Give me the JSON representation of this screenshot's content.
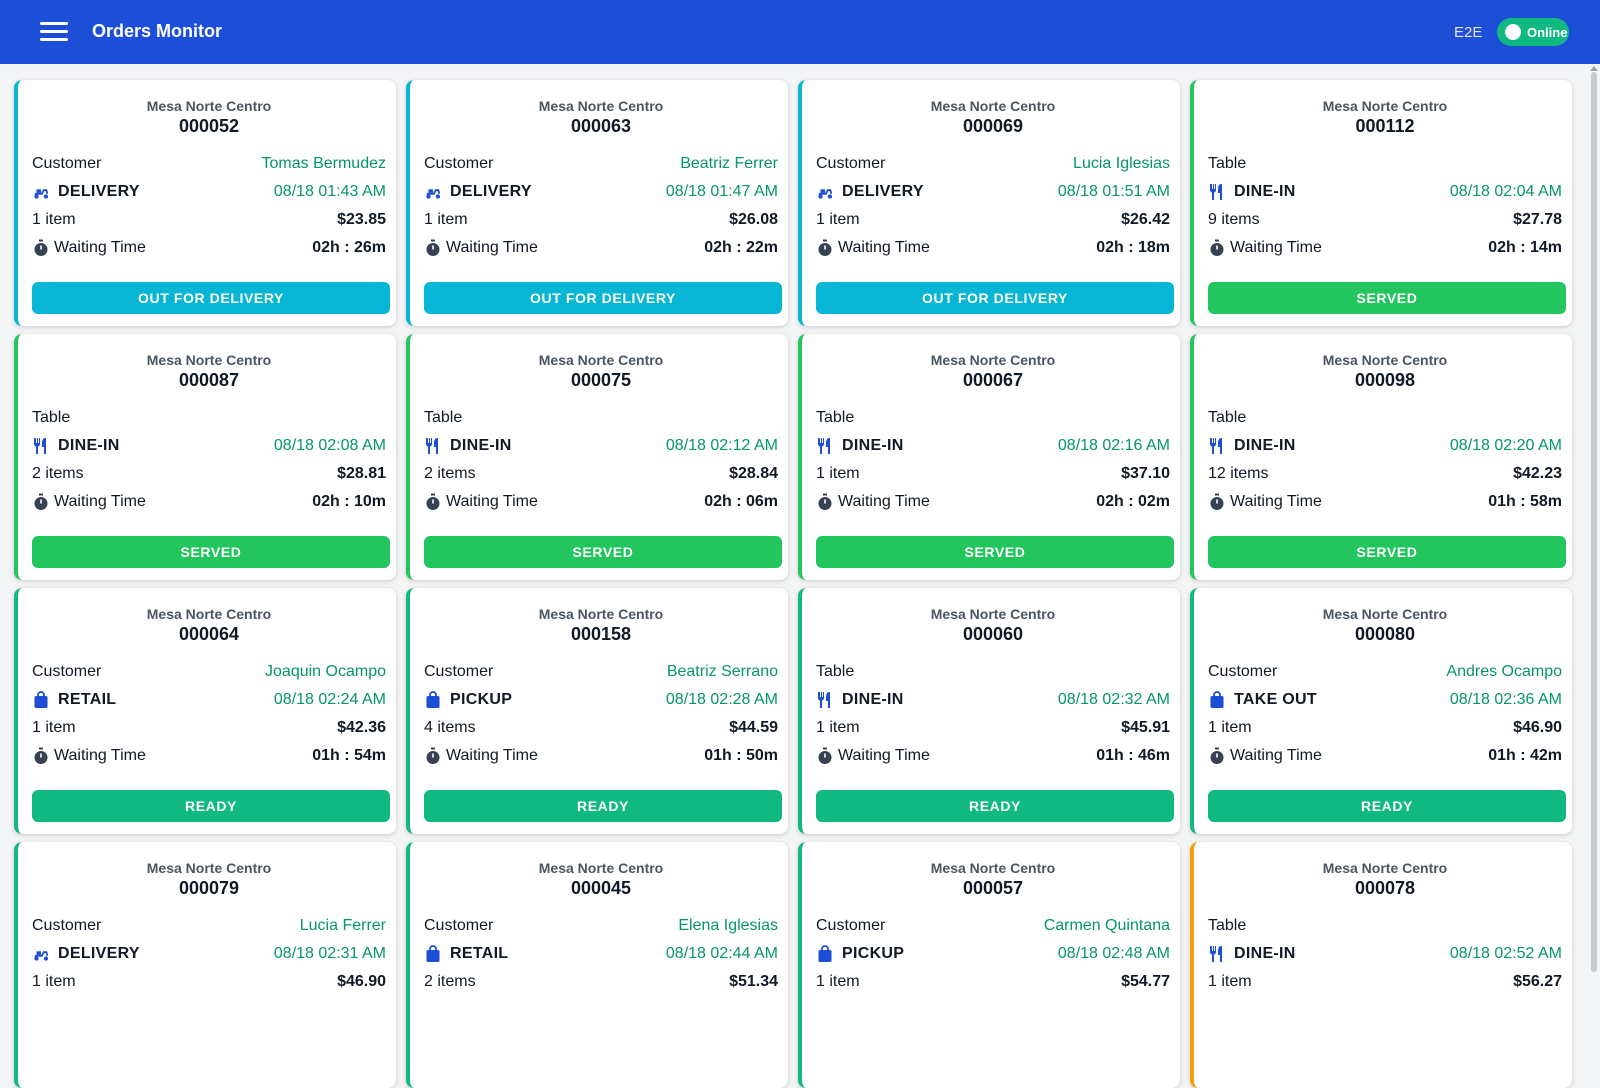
{
  "header": {
    "title": "Orders Monitor",
    "env": "E2E",
    "status": "Online"
  },
  "colors": {
    "header": "#1d4ed8",
    "delivery": "#06b6d4",
    "served": "#22c55e",
    "ready": "#10b981",
    "pending": "#f59e0b"
  },
  "orders": [
    {
      "branch": "Mesa Norte Centro",
      "number": "000052",
      "label": "Customer",
      "name": "Tomas Bermudez",
      "type": "DELIVERY",
      "icon": "scooter-icon",
      "datetime": "08/18 01:43 AM",
      "items": "1 item",
      "total": "$23.85",
      "wait_label": "Waiting Time",
      "wait": "02h : 26m",
      "status": "OUT FOR DELIVERY",
      "accent": "#06b6d4",
      "btn": "#06b6d4"
    },
    {
      "branch": "Mesa Norte Centro",
      "number": "000063",
      "label": "Customer",
      "name": "Beatriz Ferrer",
      "type": "DELIVERY",
      "icon": "scooter-icon",
      "datetime": "08/18 01:47 AM",
      "items": "1 item",
      "total": "$26.08",
      "wait_label": "Waiting Time",
      "wait": "02h : 22m",
      "status": "OUT FOR DELIVERY",
      "accent": "#06b6d4",
      "btn": "#06b6d4"
    },
    {
      "branch": "Mesa Norte Centro",
      "number": "000069",
      "label": "Customer",
      "name": "Lucia Iglesias",
      "type": "DELIVERY",
      "icon": "scooter-icon",
      "datetime": "08/18 01:51 AM",
      "items": "1 item",
      "total": "$26.42",
      "wait_label": "Waiting Time",
      "wait": "02h : 18m",
      "status": "OUT FOR DELIVERY",
      "accent": "#06b6d4",
      "btn": "#06b6d4"
    },
    {
      "branch": "Mesa Norte Centro",
      "number": "000112",
      "label": "Table",
      "name": "",
      "type": "DINE-IN",
      "icon": "utensils-icon",
      "datetime": "08/18 02:04 AM",
      "items": "9 items",
      "total": "$27.78",
      "wait_label": "Waiting Time",
      "wait": "02h : 14m",
      "status": "SERVED",
      "accent": "#22c55e",
      "btn": "#22c55e"
    },
    {
      "branch": "Mesa Norte Centro",
      "number": "000087",
      "label": "Table",
      "name": "",
      "type": "DINE-IN",
      "icon": "utensils-icon",
      "datetime": "08/18 02:08 AM",
      "items": "2 items",
      "total": "$28.81",
      "wait_label": "Waiting Time",
      "wait": "02h : 10m",
      "status": "SERVED",
      "accent": "#22c55e",
      "btn": "#22c55e"
    },
    {
      "branch": "Mesa Norte Centro",
      "number": "000075",
      "label": "Table",
      "name": "",
      "type": "DINE-IN",
      "icon": "utensils-icon",
      "datetime": "08/18 02:12 AM",
      "items": "2 items",
      "total": "$28.84",
      "wait_label": "Waiting Time",
      "wait": "02h : 06m",
      "status": "SERVED",
      "accent": "#22c55e",
      "btn": "#22c55e"
    },
    {
      "branch": "Mesa Norte Centro",
      "number": "000067",
      "label": "Table",
      "name": "",
      "type": "DINE-IN",
      "icon": "utensils-icon",
      "datetime": "08/18 02:16 AM",
      "items": "1 item",
      "total": "$37.10",
      "wait_label": "Waiting Time",
      "wait": "02h : 02m",
      "status": "SERVED",
      "accent": "#22c55e",
      "btn": "#22c55e"
    },
    {
      "branch": "Mesa Norte Centro",
      "number": "000098",
      "label": "Table",
      "name": "",
      "type": "DINE-IN",
      "icon": "utensils-icon",
      "datetime": "08/18 02:20 AM",
      "items": "12 items",
      "total": "$42.23",
      "wait_label": "Waiting Time",
      "wait": "01h : 58m",
      "status": "SERVED",
      "accent": "#22c55e",
      "btn": "#22c55e"
    },
    {
      "branch": "Mesa Norte Centro",
      "number": "000064",
      "label": "Customer",
      "name": "Joaquin Ocampo",
      "type": "RETAIL",
      "icon": "bag-icon",
      "datetime": "08/18 02:24 AM",
      "items": "1 item",
      "total": "$42.36",
      "wait_label": "Waiting Time",
      "wait": "01h : 54m",
      "status": "READY",
      "accent": "#10b981",
      "btn": "#10b981"
    },
    {
      "branch": "Mesa Norte Centro",
      "number": "000158",
      "label": "Customer",
      "name": "Beatriz Serrano",
      "type": "PICKUP",
      "icon": "bag-icon",
      "datetime": "08/18 02:28 AM",
      "items": "4 items",
      "total": "$44.59",
      "wait_label": "Waiting Time",
      "wait": "01h : 50m",
      "status": "READY",
      "accent": "#10b981",
      "btn": "#10b981"
    },
    {
      "branch": "Mesa Norte Centro",
      "number": "000060",
      "label": "Table",
      "name": "",
      "type": "DINE-IN",
      "icon": "utensils-icon",
      "datetime": "08/18 02:32 AM",
      "items": "1 item",
      "total": "$45.91",
      "wait_label": "Waiting Time",
      "wait": "01h : 46m",
      "status": "READY",
      "accent": "#10b981",
      "btn": "#10b981"
    },
    {
      "branch": "Mesa Norte Centro",
      "number": "000080",
      "label": "Customer",
      "name": "Andres Ocampo",
      "type": "TAKE OUT",
      "icon": "bag-icon",
      "datetime": "08/18 02:36 AM",
      "items": "1 item",
      "total": "$46.90",
      "wait_label": "Waiting Time",
      "wait": "01h : 42m",
      "status": "READY",
      "accent": "#10b981",
      "btn": "#10b981"
    },
    {
      "branch": "Mesa Norte Centro",
      "number": "000079",
      "label": "Customer",
      "name": "Lucia Ferrer",
      "type": "DELIVERY",
      "icon": "scooter-icon",
      "datetime": "08/18 02:31 AM",
      "items": "1 item",
      "total": "$46.90",
      "wait_label": "",
      "wait": "",
      "status": "",
      "accent": "#10b981",
      "btn": "#10b981"
    },
    {
      "branch": "Mesa Norte Centro",
      "number": "000045",
      "label": "Customer",
      "name": "Elena Iglesias",
      "type": "RETAIL",
      "icon": "bag-icon",
      "datetime": "08/18 02:44 AM",
      "items": "2 items",
      "total": "$51.34",
      "wait_label": "",
      "wait": "",
      "status": "",
      "accent": "#10b981",
      "btn": "#10b981"
    },
    {
      "branch": "Mesa Norte Centro",
      "number": "000057",
      "label": "Customer",
      "name": "Carmen Quintana",
      "type": "PICKUP",
      "icon": "bag-icon",
      "datetime": "08/18 02:48 AM",
      "items": "1 item",
      "total": "$54.77",
      "wait_label": "",
      "wait": "",
      "status": "",
      "accent": "#10b981",
      "btn": "#10b981"
    },
    {
      "branch": "Mesa Norte Centro",
      "number": "000078",
      "label": "Table",
      "name": "",
      "type": "DINE-IN",
      "icon": "utensils-icon",
      "datetime": "08/18 02:52 AM",
      "items": "1 item",
      "total": "$56.27",
      "wait_label": "",
      "wait": "",
      "status": "",
      "accent": "#f59e0b",
      "btn": "#f59e0b"
    }
  ]
}
